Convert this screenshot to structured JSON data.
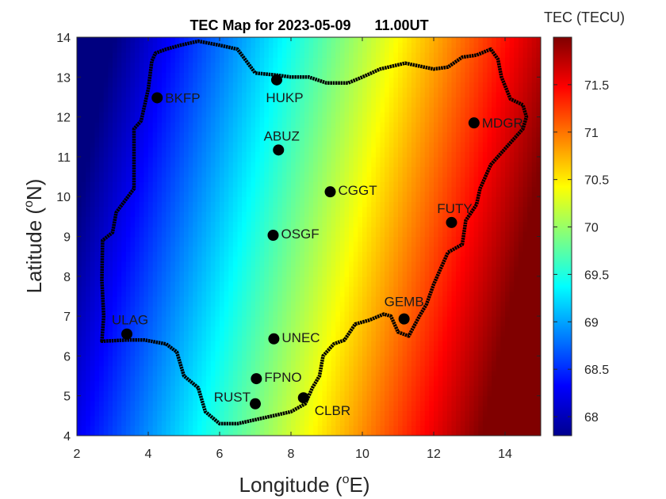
{
  "chart_data": {
    "type": "heatmap",
    "title_date": "TEC Map for 2023-05-09",
    "title_time": "11.00UT",
    "xlabel_main": "Longitude (",
    "xlabel_sup": "o",
    "xlabel_end": "E)",
    "ylabel_main": "Latitude (",
    "ylabel_sup": "o",
    "ylabel_end": "N)",
    "xlim": [
      2,
      15
    ],
    "ylim": [
      4,
      14
    ],
    "xticks": [
      "2",
      "4",
      "6",
      "8",
      "10",
      "12",
      "14"
    ],
    "yticks": [
      "4",
      "5",
      "6",
      "7",
      "8",
      "9",
      "10",
      "11",
      "12",
      "13",
      "14"
    ],
    "colorbar": {
      "label": "TEC (TECU)",
      "range": [
        67.8,
        72.0
      ],
      "ticks": [
        "68",
        "68.5",
        "69",
        "69.5",
        "70",
        "70.5",
        "71",
        "71.5"
      ],
      "colormap": "jet"
    },
    "field_model": {
      "base": 70.1,
      "lon_coeff": 0.33,
      "lat_coeff": -0.08,
      "lon_ref": 8.8,
      "lat_ref": 9.0
    },
    "stations": [
      {
        "name": "BKFP",
        "lon": 4.25,
        "lat": 12.48
      },
      {
        "name": "HUKP",
        "lon": 7.6,
        "lat": 12.93
      },
      {
        "name": "ABUZ",
        "lon": 7.65,
        "lat": 11.17
      },
      {
        "name": "MDGR",
        "lon": 13.13,
        "lat": 11.85
      },
      {
        "name": "CGGT",
        "lon": 9.1,
        "lat": 10.12
      },
      {
        "name": "FUTY",
        "lon": 12.5,
        "lat": 9.35
      },
      {
        "name": "OSGF",
        "lon": 7.5,
        "lat": 9.03
      },
      {
        "name": "GEMB",
        "lon": 11.17,
        "lat": 6.93
      },
      {
        "name": "ULAG",
        "lon": 3.4,
        "lat": 6.55
      },
      {
        "name": "UNEC",
        "lon": 7.52,
        "lat": 6.43
      },
      {
        "name": "FPNO",
        "lon": 7.03,
        "lat": 5.43
      },
      {
        "name": "RUST",
        "lon": 7.0,
        "lat": 4.8
      },
      {
        "name": "CLBR",
        "lon": 8.35,
        "lat": 4.95
      }
    ],
    "boundary": [
      [
        2.7,
        6.37
      ],
      [
        2.75,
        7.0
      ],
      [
        2.7,
        7.9
      ],
      [
        2.72,
        8.9
      ],
      [
        3.0,
        9.1
      ],
      [
        3.1,
        9.6
      ],
      [
        3.6,
        10.2
      ],
      [
        3.6,
        11.1
      ],
      [
        3.6,
        11.7
      ],
      [
        3.8,
        11.9
      ],
      [
        4.0,
        12.7
      ],
      [
        4.1,
        13.4
      ],
      [
        4.2,
        13.6
      ],
      [
        4.5,
        13.7
      ],
      [
        4.9,
        13.8
      ],
      [
        5.4,
        13.9
      ],
      [
        6.0,
        13.8
      ],
      [
        6.5,
        13.7
      ],
      [
        7.0,
        13.1
      ],
      [
        7.6,
        13.05
      ],
      [
        8.0,
        13.0
      ],
      [
        8.5,
        13.0
      ],
      [
        9.0,
        12.85
      ],
      [
        9.6,
        12.85
      ],
      [
        10.0,
        13.0
      ],
      [
        10.5,
        13.2
      ],
      [
        11.2,
        13.35
      ],
      [
        12.0,
        13.2
      ],
      [
        12.4,
        13.25
      ],
      [
        12.8,
        13.5
      ],
      [
        13.2,
        13.55
      ],
      [
        13.6,
        13.7
      ],
      [
        13.8,
        13.45
      ],
      [
        13.9,
        13.0
      ],
      [
        14.15,
        12.45
      ],
      [
        14.5,
        12.3
      ],
      [
        14.6,
        12.0
      ],
      [
        14.5,
        11.7
      ],
      [
        14.0,
        11.2
      ],
      [
        13.6,
        10.8
      ],
      [
        13.3,
        10.2
      ],
      [
        13.2,
        9.8
      ],
      [
        12.9,
        9.4
      ],
      [
        12.8,
        8.8
      ],
      [
        12.4,
        8.6
      ],
      [
        12.2,
        8.2
      ],
      [
        12.0,
        7.8
      ],
      [
        11.8,
        7.3
      ],
      [
        11.6,
        7.0
      ],
      [
        11.3,
        6.5
      ],
      [
        11.0,
        6.6
      ],
      [
        10.8,
        7.0
      ],
      [
        10.6,
        7.05
      ],
      [
        10.2,
        6.9
      ],
      [
        9.8,
        6.8
      ],
      [
        9.5,
        6.4
      ],
      [
        9.2,
        6.3
      ],
      [
        8.9,
        6.0
      ],
      [
        8.8,
        5.5
      ],
      [
        8.6,
        5.2
      ],
      [
        8.4,
        4.8
      ],
      [
        8.0,
        4.6
      ],
      [
        7.5,
        4.5
      ],
      [
        7.0,
        4.4
      ],
      [
        6.5,
        4.3
      ],
      [
        6.0,
        4.3
      ],
      [
        5.6,
        4.6
      ],
      [
        5.4,
        5.2
      ],
      [
        5.0,
        5.5
      ],
      [
        4.8,
        6.1
      ],
      [
        4.5,
        6.3
      ],
      [
        3.9,
        6.4
      ],
      [
        3.4,
        6.4
      ],
      [
        2.7,
        6.37
      ]
    ]
  }
}
